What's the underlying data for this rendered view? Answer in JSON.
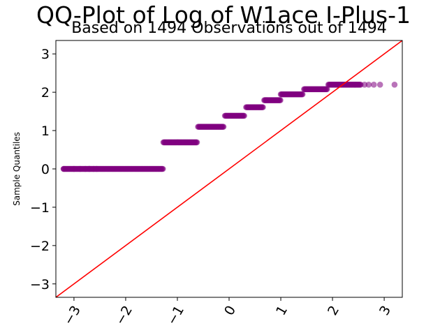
{
  "chart_data": {
    "type": "scatter",
    "title": "QQ-Plot of Log of W1ace I-Plus-1",
    "subtitle": "Based on 1494 Observations out of 1494",
    "ylabel": "Sample Quantiles",
    "xlabel": "",
    "xlim": [
      -3.35,
      3.35
    ],
    "ylim": [
      -3.35,
      3.35
    ],
    "x_ticks": [
      -3,
      -2,
      -1,
      0,
      1,
      2,
      3
    ],
    "y_ticks": [
      -3,
      -2,
      -1,
      0,
      1,
      2,
      3
    ],
    "x_tick_labels": [
      "−3",
      "−2",
      "−1",
      "0",
      "1",
      "2",
      "3"
    ],
    "y_tick_labels": [
      "−3",
      "−2",
      "−1",
      "0",
      "1",
      "2",
      "3"
    ],
    "grid": false,
    "point_color": "#800080",
    "point_opacity": 0.55,
    "reference_line": {
      "color": "#ff0000",
      "slope": 1,
      "intercept": 0
    },
    "series": [
      {
        "steps": [
          {
            "y": 0.0,
            "x_start": -3.2,
            "x_end": -1.28,
            "isolated_x": [
              -3.2,
              -3.0,
              -2.88,
              -2.78,
              -2.7,
              -2.62,
              -2.56
            ]
          },
          {
            "y": 0.693,
            "x_start": -1.27,
            "x_end": -0.62,
            "isolated_x": []
          },
          {
            "y": 1.099,
            "x_start": -0.6,
            "x_end": -0.1,
            "isolated_x": []
          },
          {
            "y": 1.386,
            "x_start": -0.08,
            "x_end": 0.3,
            "isolated_x": []
          },
          {
            "y": 1.609,
            "x_start": 0.33,
            "x_end": 0.66,
            "isolated_x": []
          },
          {
            "y": 1.792,
            "x_start": 0.68,
            "x_end": 1.0,
            "isolated_x": []
          },
          {
            "y": 1.946,
            "x_start": 1.0,
            "x_end": 1.43,
            "isolated_x": []
          },
          {
            "y": 2.079,
            "x_start": 1.45,
            "x_end": 1.9,
            "isolated_x": []
          },
          {
            "y": 2.197,
            "x_start": 1.92,
            "x_end": 2.55,
            "isolated_x": [
              2.62,
              2.7,
              2.8,
              2.92,
              3.2
            ]
          }
        ]
      }
    ]
  }
}
